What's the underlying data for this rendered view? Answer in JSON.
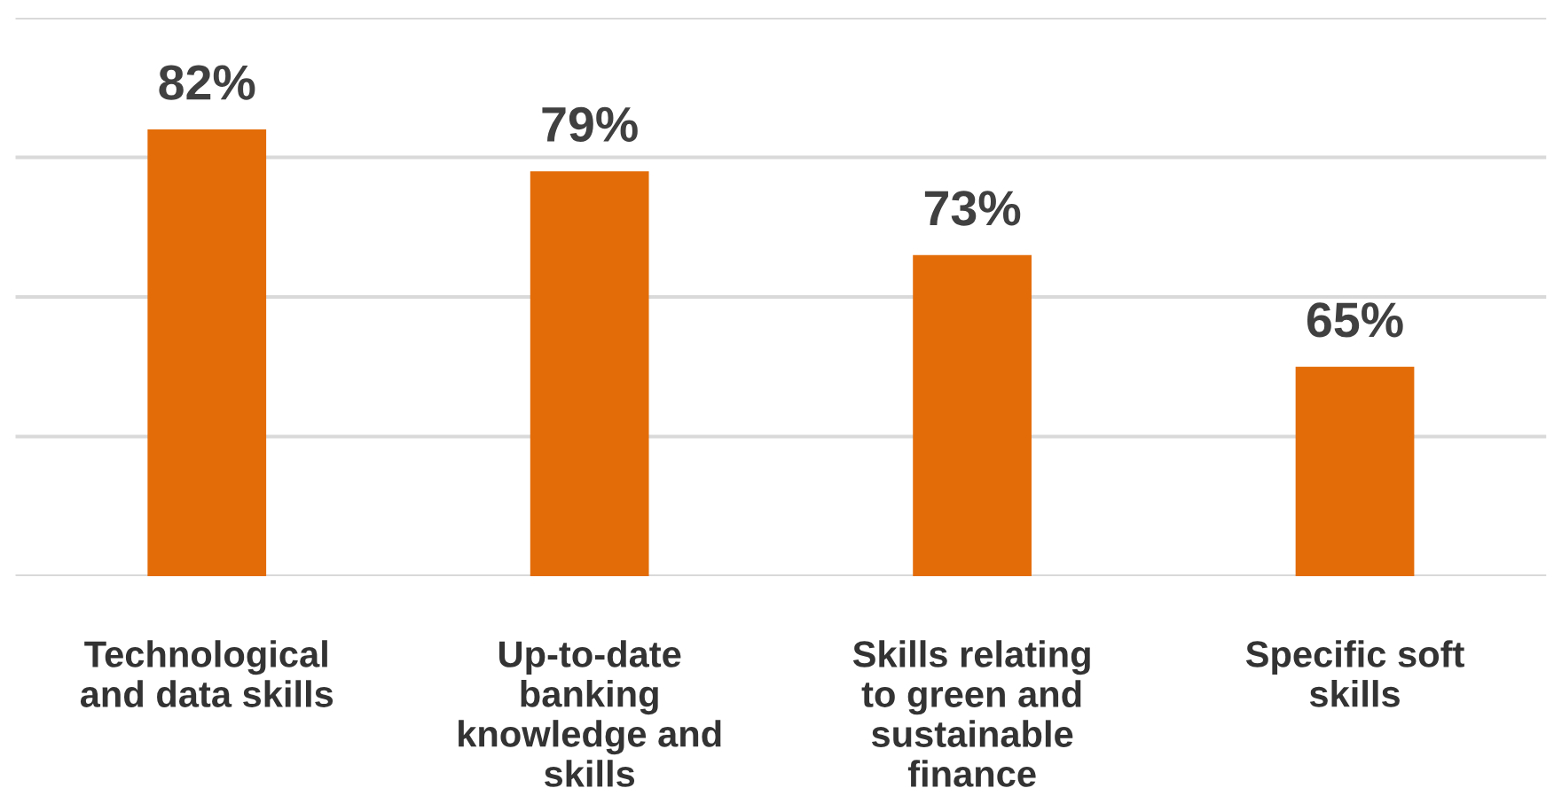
{
  "chart_data": {
    "type": "bar",
    "categories": [
      "Technological\nand data skills",
      "Up-to-date\nbanking\nknowledge and\nskills",
      "Skills relating\nto green and\nsustainable\nfinance",
      "Specific soft\nskills"
    ],
    "values": [
      82,
      79,
      73,
      65
    ],
    "color": "#e36c09",
    "data_labels": true,
    "value_labels": [
      "82%",
      "79%",
      "73%",
      "65%"
    ],
    "ylim": [
      50,
      90
    ],
    "yticks": [
      {
        "value": 50,
        "label": null
      },
      {
        "value": 60,
        "label": null
      },
      {
        "value": 70,
        "label": null
      },
      {
        "value": 80,
        "label": null
      },
      {
        "value": 90,
        "label": null
      }
    ],
    "grid": "y",
    "tick_labels": "x",
    "legend": false
  }
}
